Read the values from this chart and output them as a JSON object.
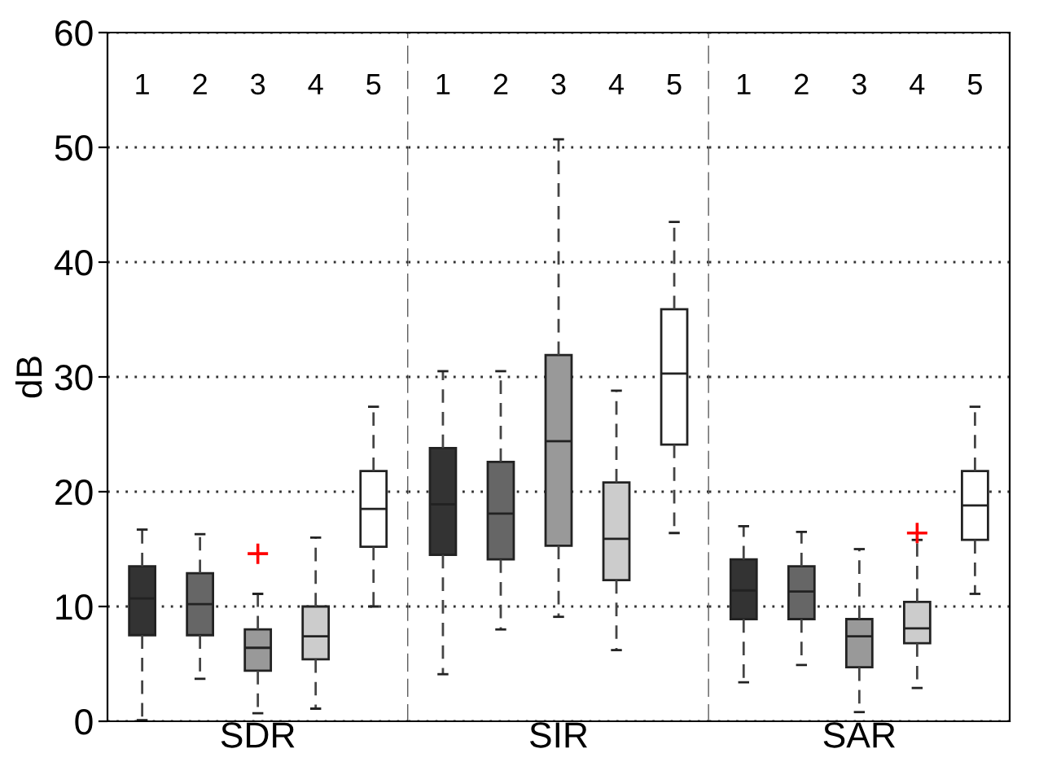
{
  "chart_data": [
    {
      "type": "box",
      "xlabel": "SDR",
      "ylabel": "dB",
      "categories": [
        "1",
        "2",
        "3",
        "4",
        "5"
      ],
      "colors": [
        "#333333",
        "#666666",
        "#999999",
        "#cccccc",
        "#ffffff"
      ],
      "ylim": [
        0,
        60
      ],
      "yticks": [
        0,
        10,
        20,
        30,
        40,
        50,
        60
      ],
      "grid": "y",
      "marker": "cross",
      "boxes": [
        {
          "low": 0.1,
          "q1": 7.5,
          "median": 10.7,
          "q3": 13.5,
          "high": 16.7
        },
        {
          "low": 3.7,
          "q1": 7.5,
          "median": 10.2,
          "q3": 12.9,
          "high": 16.3
        },
        {
          "low": 0.7,
          "q1": 4.4,
          "median": 6.4,
          "q3": 8.0,
          "high": 11.1,
          "outliers": [
            14.6
          ]
        },
        {
          "low": 1.1,
          "q1": 5.4,
          "median": 7.4,
          "q3": 10.0,
          "high": 16.0
        },
        {
          "low": 10.0,
          "q1": 15.2,
          "median": 18.5,
          "q3": 21.8,
          "high": 27.4
        }
      ]
    },
    {
      "type": "box",
      "xlabel": "SIR",
      "categories": [
        "1",
        "2",
        "3",
        "4",
        "5"
      ],
      "colors": [
        "#333333",
        "#666666",
        "#999999",
        "#cccccc",
        "#ffffff"
      ],
      "ylim": [
        0,
        60
      ],
      "yticks": [
        0,
        10,
        20,
        30,
        40,
        50,
        60
      ],
      "grid": "y",
      "tick_labels": "x",
      "boxes": [
        {
          "low": 4.1,
          "q1": 14.5,
          "median": 18.9,
          "q3": 23.8,
          "high": 30.5
        },
        {
          "low": 8.0,
          "q1": 14.1,
          "median": 18.1,
          "q3": 22.6,
          "high": 30.5
        },
        {
          "low": 9.1,
          "q1": 15.3,
          "median": 24.4,
          "q3": 31.9,
          "high": 50.7
        },
        {
          "low": 6.2,
          "q1": 12.3,
          "median": 15.9,
          "q3": 20.8,
          "high": 28.8
        },
        {
          "low": 16.4,
          "q1": 24.1,
          "median": 30.3,
          "q3": 35.9,
          "high": 43.5
        }
      ]
    },
    {
      "type": "box",
      "xlabel": "SAR",
      "categories": [
        "1",
        "2",
        "3",
        "4",
        "5"
      ],
      "colors": [
        "#333333",
        "#666666",
        "#999999",
        "#cccccc",
        "#ffffff"
      ],
      "ylim": [
        0,
        60
      ],
      "yticks": [
        0,
        10,
        20,
        30,
        40,
        50,
        60
      ],
      "grid": "y",
      "tick_labels": "x",
      "marker": "cross",
      "boxes": [
        {
          "low": 3.4,
          "q1": 8.9,
          "median": 11.4,
          "q3": 14.1,
          "high": 17.0
        },
        {
          "low": 4.9,
          "q1": 8.9,
          "median": 11.3,
          "q3": 13.5,
          "high": 16.5
        },
        {
          "low": 0.8,
          "q1": 4.7,
          "median": 7.4,
          "q3": 8.9,
          "high": 15.0
        },
        {
          "low": 2.9,
          "q1": 6.8,
          "median": 8.1,
          "q3": 10.4,
          "high": 15.8,
          "outliers": [
            16.4
          ]
        },
        {
          "low": 11.1,
          "q1": 15.8,
          "median": 18.8,
          "q3": 21.8,
          "high": 27.4
        }
      ]
    }
  ]
}
